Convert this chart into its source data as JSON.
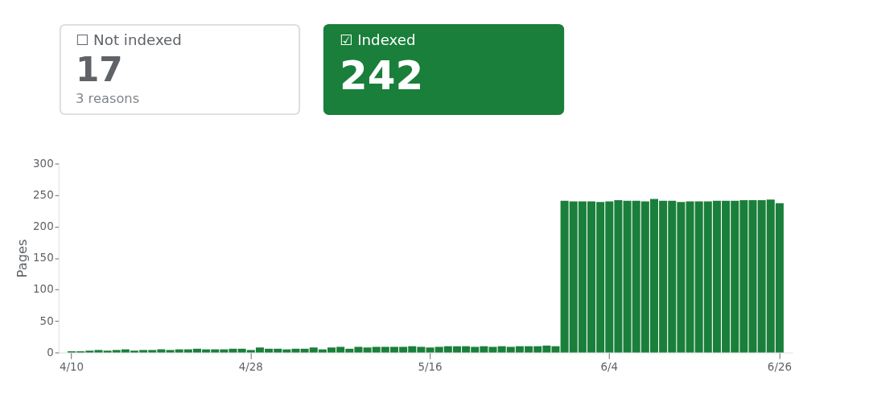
{
  "chart_data": [
    {
      "type": "other",
      "categories": [
        "☐ Not indexed",
        "☑ Indexed"
      ],
      "values": [
        17,
        242
      ],
      "data_labels": true,
      "colors": [
        "#ffffff",
        "#1a7f3a"
      ],
      "annotations": [
        "3 reasons"
      ]
    },
    {
      "type": "bar",
      "ylabel": "Pages",
      "color": "#1a7f3a",
      "ylim": [
        0,
        300
      ],
      "yticks": [
        0,
        50,
        100,
        150,
        200,
        250,
        300
      ],
      "grid": false,
      "legend": false,
      "categories": [
        "4/10",
        null,
        null,
        null,
        null,
        null,
        null,
        null,
        null,
        null,
        null,
        null,
        null,
        null,
        null,
        null,
        null,
        null,
        null,
        null,
        "4/28",
        null,
        null,
        null,
        null,
        null,
        null,
        null,
        null,
        null,
        null,
        null,
        null,
        null,
        null,
        null,
        null,
        null,
        null,
        null,
        "5/16",
        null,
        null,
        null,
        null,
        null,
        null,
        null,
        null,
        null,
        null,
        null,
        null,
        null,
        null,
        null,
        null,
        null,
        null,
        null,
        "6/4",
        null,
        null,
        null,
        null,
        null,
        null,
        null,
        null,
        null,
        null,
        null,
        null,
        null,
        null,
        null,
        null,
        null,
        null,
        "6/26"
      ],
      "values": [
        2,
        2,
        3,
        4,
        3,
        4,
        5,
        3,
        4,
        4,
        5,
        4,
        5,
        5,
        6,
        5,
        5,
        5,
        6,
        6,
        4,
        8,
        6,
        6,
        5,
        6,
        6,
        8,
        5,
        8,
        9,
        6,
        9,
        8,
        9,
        9,
        9,
        9,
        10,
        9,
        8,
        9,
        10,
        10,
        10,
        9,
        10,
        9,
        10,
        9,
        10,
        10,
        10,
        11,
        10,
        241,
        240,
        240,
        240,
        239,
        240,
        242,
        241,
        241,
        240,
        244,
        241,
        241,
        239,
        240,
        240,
        240,
        241,
        241,
        241,
        242,
        242,
        242,
        243,
        237
      ]
    }
  ]
}
